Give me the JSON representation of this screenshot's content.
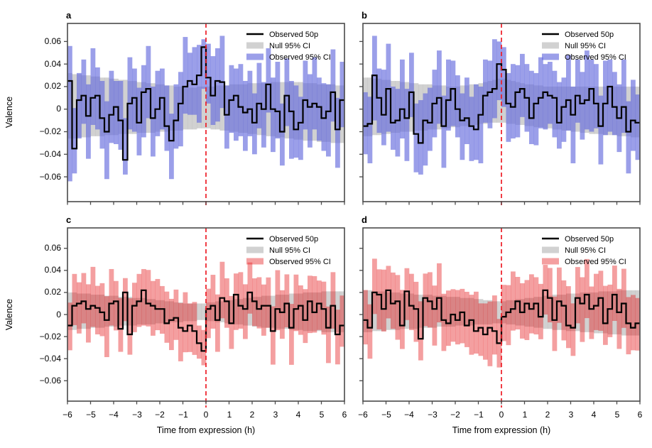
{
  "figure": {
    "background": "#ffffff",
    "panels": [
      {
        "letter": "a",
        "ci_color": "blue"
      },
      {
        "letter": "b",
        "ci_color": "blue"
      },
      {
        "letter": "c",
        "ci_color": "red"
      },
      {
        "letter": "d",
        "ci_color": "red"
      }
    ],
    "axes": {
      "ylabel": "Valence",
      "xlabel": "Time from expression (h)",
      "y_tick_values": [
        0.06,
        0.04,
        0.02,
        0,
        -0.02,
        -0.04,
        -0.06
      ],
      "y_tick_labels": [
        "0.06",
        "0.04",
        "0.02",
        "0",
        "−0.02",
        "−0.04",
        "−0.06"
      ],
      "x_tick_values": [
        -6,
        -5,
        -4,
        -3,
        -2,
        -1,
        0,
        1,
        2,
        3,
        4,
        5,
        6
      ],
      "x_tick_labels": [
        "−6",
        "−5",
        "−4",
        "−3",
        "−2",
        "−1",
        "0",
        "1",
        "2",
        "3",
        "4",
        "5",
        "6"
      ]
    },
    "legend": {
      "items": [
        {
          "label": "Observed 50p",
          "swatch": "line"
        },
        {
          "label": "Null 95% CI",
          "swatch": "patch",
          "color_key": "null"
        },
        {
          "label": "Observed 95% CI",
          "swatch": "patch",
          "color_key": "panel"
        }
      ]
    },
    "colors": {
      "observed_blue": "rgba(102,107,221,0.65)",
      "observed_red": "rgba(228,26,28,0.42)",
      "null_gray": "rgba(153,153,153,0.45)",
      "median_line": "#000000",
      "event_line": "#ee1c25",
      "axis": "#4a4a4a",
      "text": "#000000"
    }
  },
  "chart_data": [
    {
      "panel": "a",
      "type": "line",
      "style": "step median line with per-bin 95% CI bars and null-CI band",
      "xlabel": "Time from expression (h)",
      "ylabel": "Valence",
      "xlim": [
        -6,
        6
      ],
      "ylim": [
        -0.08,
        0.078
      ],
      "x_bin_start": -6.0,
      "x_bin_width": 0.2,
      "event_line_x": 0,
      "legend": [
        "Observed 50p",
        "Null 95% CI",
        "Observed 95% CI"
      ],
      "legend_position": "top-right",
      "observed_ci_color": "blue",
      "value_unit": 0.001,
      "median": [
        25,
        -35,
        8,
        12,
        -6,
        10,
        12,
        -8,
        -20,
        -5,
        2,
        -10,
        -45,
        5,
        10,
        -12,
        15,
        18,
        -8,
        0,
        10,
        -15,
        -28,
        -10,
        5,
        20,
        25,
        22,
        30,
        55,
        28,
        12,
        25,
        24,
        -5,
        8,
        12,
        2,
        -3,
        0,
        -12,
        5,
        0,
        22,
        0,
        -2,
        -20,
        12,
        -2,
        -18,
        -12,
        8,
        2,
        5,
        2,
        -8,
        -2,
        15,
        -18,
        8
      ],
      "null_ci_hi": [
        32,
        31,
        31,
        30,
        30,
        29,
        29,
        28,
        28,
        27,
        27,
        26,
        26,
        25,
        25,
        24,
        24,
        23,
        23,
        22,
        22,
        21,
        21,
        20,
        20,
        20,
        19,
        19,
        20,
        20,
        20,
        20,
        21,
        21,
        21,
        22,
        22,
        22,
        22,
        23,
        23,
        23,
        23,
        23,
        24,
        24,
        24,
        24,
        24,
        24,
        24,
        23,
        23,
        23,
        22,
        22,
        22,
        22,
        21,
        21
      ],
      "null_ci_lo": [
        -26,
        -26,
        -25,
        -25,
        -25,
        -24,
        -24,
        -24,
        -23,
        -23,
        -23,
        -22,
        -22,
        -22,
        -22,
        -21,
        -21,
        -21,
        -21,
        -20,
        -20,
        -20,
        -19,
        -19,
        -19,
        -18,
        -18,
        -18,
        -17,
        -17,
        -17,
        -18,
        -18,
        -19,
        -19,
        -20,
        -20,
        -21,
        -21,
        -22,
        -22,
        -23,
        -23,
        -24,
        -24,
        -25,
        -25,
        -26,
        -26,
        -27,
        -27,
        -28,
        -28,
        -28,
        -29,
        -29,
        -29,
        -30,
        -30,
        -30
      ],
      "observed_ci_halfwidth_lo_cycle": [
        28,
        22,
        34,
        25,
        38,
        24,
        30,
        27,
        42,
        25,
        33,
        26,
        36,
        23,
        30,
        29,
        40,
        26,
        34,
        24
      ],
      "observed_ci_halfwidth_hi_cycle": [
        26,
        36,
        24,
        32,
        28,
        44,
        25,
        33,
        27,
        39,
        23,
        35,
        29,
        41,
        26,
        31,
        24,
        38,
        28,
        34
      ],
      "observed_ci_halfwidth_scale": 1,
      "observed_ci_overrides": {
        "0": [
          -64,
          56
        ],
        "12": [
          -58,
          -8
        ],
        "29": [
          18,
          62
        ],
        "30": [
          5,
          58
        ]
      }
    },
    {
      "panel": "b",
      "type": "line",
      "style": "step median line with per-bin 95% CI bars and null-CI band",
      "xlabel": "Time from expression (h)",
      "ylabel": "Valence",
      "xlim": [
        -6,
        6
      ],
      "ylim": [
        -0.08,
        0.078
      ],
      "x_bin_start": -6.0,
      "x_bin_width": 0.2,
      "event_line_x": 0,
      "legend": [
        "Observed 50p",
        "Null 95% CI",
        "Observed 95% CI"
      ],
      "legend_position": "top-right",
      "observed_ci_color": "blue",
      "value_unit": 0.001,
      "median": [
        -15,
        -13,
        30,
        10,
        -5,
        18,
        -12,
        -10,
        0,
        -8,
        15,
        -22,
        -30,
        -10,
        -12,
        5,
        10,
        -15,
        8,
        18,
        0,
        -10,
        -8,
        -15,
        -18,
        -5,
        12,
        15,
        18,
        40,
        35,
        5,
        2,
        15,
        18,
        10,
        -8,
        5,
        10,
        15,
        12,
        10,
        -12,
        2,
        8,
        -5,
        12,
        5,
        8,
        18,
        5,
        -15,
        5,
        20,
        2,
        -8,
        2,
        -20,
        -10,
        -12
      ],
      "null_ci_hi": [
        28,
        28,
        27,
        27,
        26,
        26,
        25,
        25,
        24,
        24,
        23,
        23,
        22,
        22,
        22,
        21,
        21,
        21,
        20,
        20,
        20,
        21,
        21,
        22,
        22,
        23,
        24,
        25,
        26,
        27,
        27,
        26,
        25,
        24,
        23,
        22,
        22,
        21,
        21,
        20,
        20,
        20,
        20,
        20,
        20,
        20,
        20,
        20,
        20,
        20,
        20,
        20,
        20,
        20,
        20,
        20,
        20,
        20,
        20,
        20
      ],
      "null_ci_lo": [
        -24,
        -24,
        -23,
        -23,
        -22,
        -22,
        -21,
        -21,
        -20,
        -20,
        -20,
        -19,
        -19,
        -19,
        -18,
        -18,
        -18,
        -17,
        -17,
        -16,
        -16,
        -15,
        -15,
        -14,
        -14,
        -13,
        -13,
        -12,
        -12,
        -12,
        -12,
        -13,
        -13,
        -14,
        -14,
        -15,
        -15,
        -16,
        -16,
        -17,
        -17,
        -18,
        -18,
        -19,
        -19,
        -20,
        -20,
        -21,
        -21,
        -22,
        -22,
        -22,
        -23,
        -23,
        -23,
        -24,
        -24,
        -24,
        -25,
        -25
      ],
      "observed_ci_halfwidth_lo_cycle": [
        25,
        35,
        23,
        31,
        27,
        43,
        24,
        32,
        26,
        38,
        22,
        34,
        28,
        40,
        25,
        30,
        23,
        37,
        27,
        33
      ],
      "observed_ci_halfwidth_hi_cycle": [
        30,
        24,
        36,
        26,
        40,
        25,
        32,
        28,
        44,
        26,
        35,
        27,
        38,
        24,
        31,
        30,
        42,
        27,
        36,
        25
      ],
      "observed_ci_halfwidth_scale": 1,
      "observed_ci_overrides": {
        "2": [
          -10,
          65
        ],
        "5": [
          -20,
          58
        ],
        "29": [
          8,
          60
        ],
        "30": [
          2,
          55
        ]
      }
    },
    {
      "panel": "c",
      "type": "line",
      "style": "step median line with per-bin 95% CI bars and null-CI band",
      "xlabel": "Time from expression (h)",
      "ylabel": "Valence",
      "xlim": [
        -6,
        6
      ],
      "ylim": [
        -0.08,
        0.078
      ],
      "x_bin_start": -6.0,
      "x_bin_width": 0.2,
      "event_line_x": 0,
      "legend": [
        "Observed 50p",
        "Null 95% CI",
        "Observed 95% CI"
      ],
      "legend_position": "top-right",
      "observed_ci_color": "red",
      "value_unit": 0.001,
      "median": [
        -10,
        8,
        10,
        12,
        5,
        8,
        6,
        2,
        -5,
        10,
        12,
        -13,
        20,
        -18,
        8,
        12,
        22,
        10,
        8,
        5,
        5,
        -8,
        -5,
        -3,
        -12,
        -15,
        -10,
        -15,
        -26,
        -33,
        5,
        8,
        -5,
        15,
        12,
        -8,
        18,
        8,
        5,
        20,
        12,
        5,
        8,
        8,
        -15,
        5,
        2,
        10,
        -12,
        5,
        8,
        -5,
        12,
        2,
        10,
        5,
        -12,
        8,
        -18,
        -10
      ],
      "null_ci_hi": [
        20,
        20,
        19,
        19,
        19,
        18,
        18,
        18,
        17,
        17,
        17,
        16,
        16,
        16,
        15,
        15,
        15,
        14,
        14,
        13,
        13,
        12,
        12,
        11,
        11,
        10,
        10,
        10,
        10,
        10,
        11,
        11,
        12,
        12,
        13,
        13,
        14,
        14,
        15,
        15,
        16,
        16,
        17,
        17,
        17,
        18,
        18,
        18,
        19,
        19,
        19,
        20,
        20,
        20,
        20,
        21,
        21,
        21,
        21,
        21
      ],
      "null_ci_lo": [
        -14,
        -14,
        -13,
        -13,
        -13,
        -12,
        -12,
        -12,
        -11,
        -11,
        -11,
        -10,
        -10,
        -10,
        -10,
        -9,
        -9,
        -9,
        -9,
        -8,
        -8,
        -8,
        -7,
        -7,
        -7,
        -6,
        -6,
        -6,
        -5,
        -5,
        -6,
        -6,
        -7,
        -7,
        -8,
        -8,
        -9,
        -9,
        -10,
        -10,
        -11,
        -11,
        -12,
        -12,
        -12,
        -13,
        -13,
        -13,
        -14,
        -14,
        -14,
        -15,
        -15,
        -15,
        -15,
        -16,
        -16,
        -16,
        -16,
        -16
      ],
      "observed_ci_halfwidth_lo_cycle": [
        28,
        22,
        34,
        25,
        38,
        24,
        30,
        27,
        42,
        25,
        33,
        26,
        36,
        23,
        30,
        29,
        40,
        26,
        34,
        24
      ],
      "observed_ci_halfwidth_hi_cycle": [
        26,
        36,
        24,
        32,
        28,
        44,
        25,
        33,
        27,
        39,
        23,
        35,
        29,
        41,
        26,
        31,
        24,
        38,
        28,
        34
      ],
      "observed_ci_halfwidth_scale": 0.8,
      "observed_ci_overrides": {
        "12": [
          -6,
          33
        ],
        "28": [
          -40,
          -10
        ],
        "29": [
          -46,
          -14
        ]
      }
    },
    {
      "panel": "d",
      "type": "line",
      "style": "step median line with per-bin 95% CI bars and null-CI band",
      "xlabel": "Time from expression (h)",
      "ylabel": "Valence",
      "xlim": [
        -6,
        6
      ],
      "ylim": [
        -0.08,
        0.078
      ],
      "x_bin_start": -6.0,
      "x_bin_width": 0.2,
      "event_line_x": 0,
      "legend": [
        "Observed 50p",
        "Null 95% CI",
        "Observed 95% CI"
      ],
      "legend_position": "top-right",
      "observed_ci_color": "red",
      "value_unit": 0.001,
      "median": [
        -5,
        -12,
        20,
        18,
        5,
        22,
        10,
        12,
        -10,
        21,
        8,
        5,
        -22,
        15,
        12,
        5,
        15,
        -5,
        -8,
        0,
        -5,
        2,
        -10,
        -5,
        -15,
        -12,
        -18,
        -12,
        -15,
        -26,
        -2,
        2,
        5,
        12,
        2,
        10,
        5,
        10,
        -2,
        22,
        15,
        -5,
        12,
        8,
        -10,
        -12,
        15,
        10,
        18,
        5,
        8,
        15,
        -8,
        5,
        18,
        2,
        10,
        -8,
        -12,
        -8
      ],
      "null_ci_hi": [
        22,
        22,
        21,
        21,
        21,
        20,
        20,
        20,
        19,
        19,
        19,
        18,
        18,
        18,
        18,
        17,
        17,
        17,
        16,
        16,
        16,
        15,
        15,
        15,
        14,
        14,
        13,
        13,
        12,
        12,
        12,
        13,
        13,
        14,
        14,
        15,
        15,
        16,
        16,
        17,
        17,
        18,
        18,
        18,
        19,
        19,
        19,
        20,
        20,
        20,
        20,
        21,
        21,
        21,
        21,
        22,
        22,
        22,
        22,
        22
      ],
      "null_ci_lo": [
        -16,
        -16,
        -15,
        -15,
        -15,
        -14,
        -14,
        -14,
        -13,
        -13,
        -13,
        -13,
        -12,
        -12,
        -12,
        -12,
        -11,
        -11,
        -11,
        -11,
        -10,
        -10,
        -10,
        -10,
        -9,
        -9,
        -9,
        -9,
        -8,
        -8,
        -8,
        -9,
        -9,
        -10,
        -10,
        -11,
        -11,
        -12,
        -12,
        -13,
        -13,
        -14,
        -14,
        -14,
        -15,
        -15,
        -15,
        -16,
        -16,
        -16,
        -17,
        -17,
        -17,
        -18,
        -18,
        -18,
        -19,
        -19,
        -19,
        -19
      ],
      "observed_ci_halfwidth_lo_cycle": [
        26,
        33,
        23,
        37,
        24,
        30,
        27,
        41,
        25,
        32,
        26,
        35,
        23,
        30,
        28,
        39,
        26,
        33,
        24,
        29
      ],
      "observed_ci_halfwidth_hi_cycle": [
        32,
        25,
        36,
        27,
        42,
        26,
        33,
        28,
        38,
        24,
        34,
        29,
        40,
        26,
        31,
        25,
        37,
        28,
        35,
        27
      ],
      "observed_ci_halfwidth_scale": 0.85,
      "observed_ci_overrides": {
        "9": [
          -5,
          42
        ],
        "29": [
          -48,
          -4
        ],
        "39": [
          0,
          45
        ]
      }
    }
  ]
}
